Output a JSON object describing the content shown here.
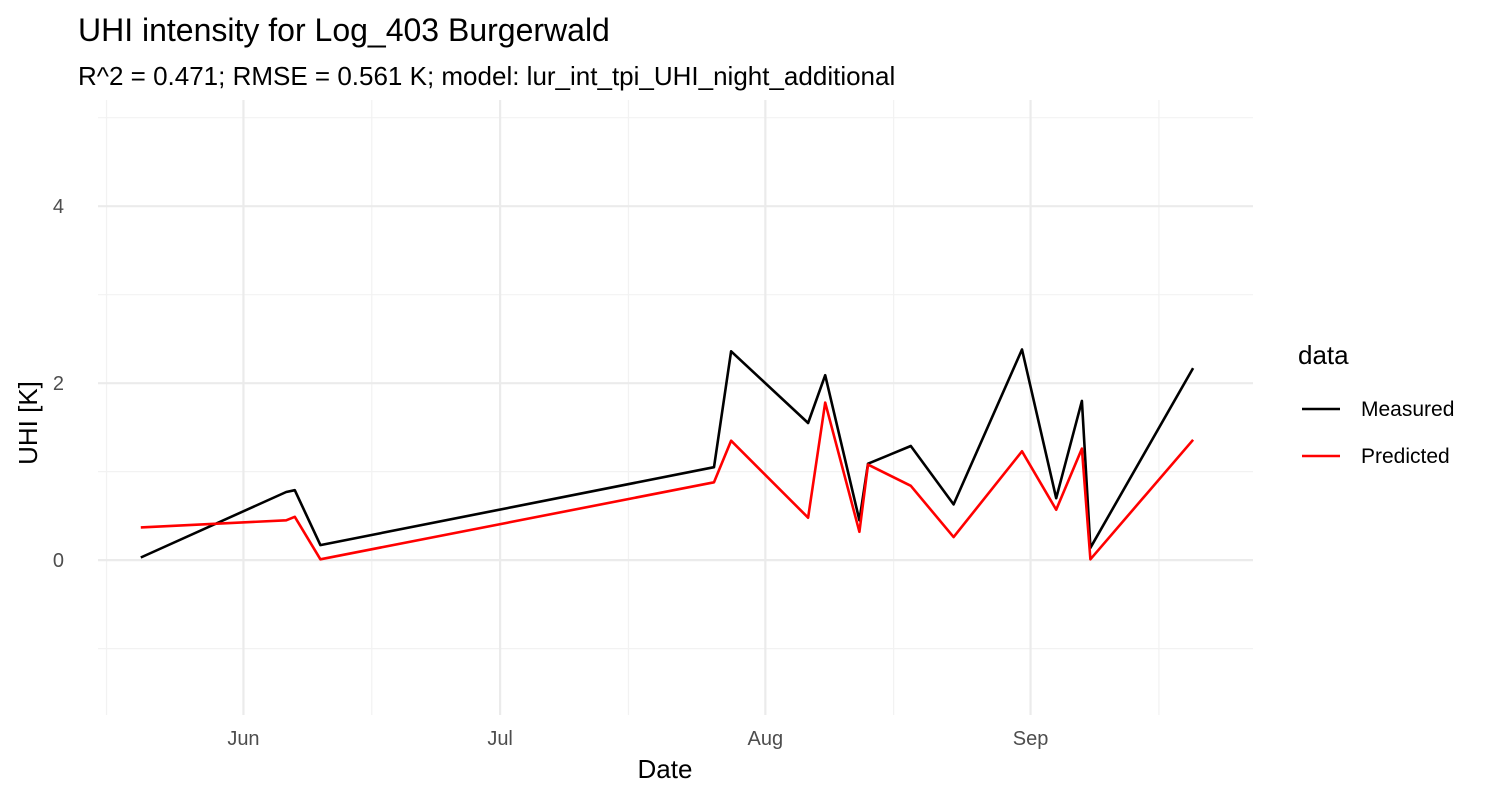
{
  "chart_data": {
    "type": "line",
    "title": "UHI intensity for Log_403 Burgerwald",
    "subtitle": "R^2 = 0.471; RMSE = 0.561 K; model: lur_int_tpi_UHI_night_additional",
    "xlabel": "Date",
    "ylabel": "UHI [K]",
    "xlim": [
      "2023-05-15",
      "2023-09-27"
    ],
    "ylim": [
      -1.75,
      5.2
    ],
    "x_ticks": [
      {
        "date": "2023-06-01",
        "label": "Jun"
      },
      {
        "date": "2023-07-01",
        "label": "Jul"
      },
      {
        "date": "2023-08-01",
        "label": "Aug"
      },
      {
        "date": "2023-09-01",
        "label": "Sep"
      }
    ],
    "x_minor_ticks": [
      "2023-05-16",
      "2023-06-16",
      "2023-07-16",
      "2023-08-16",
      "2023-09-16"
    ],
    "y_ticks": [
      {
        "value": 0,
        "label": "0"
      },
      {
        "value": 2,
        "label": "2"
      },
      {
        "value": 4,
        "label": "4"
      }
    ],
    "y_minor_ticks": [
      -1,
      1,
      3,
      5
    ],
    "grid": true,
    "legend": {
      "title": "data",
      "position": "right"
    },
    "x": [
      "2023-05-20",
      "2023-06-06",
      "2023-06-07",
      "2023-06-10",
      "2023-07-26",
      "2023-07-28",
      "2023-08-06",
      "2023-08-08",
      "2023-08-12",
      "2023-08-13",
      "2023-08-18",
      "2023-08-23",
      "2023-08-31",
      "2023-09-04",
      "2023-09-07",
      "2023-09-08",
      "2023-09-20"
    ],
    "series": [
      {
        "name": "Measured",
        "color": "#000000",
        "values": [
          0.03,
          0.77,
          0.79,
          0.17,
          1.05,
          2.36,
          1.55,
          2.09,
          0.45,
          1.09,
          1.29,
          0.63,
          2.38,
          0.7,
          1.8,
          0.14,
          2.17
        ]
      },
      {
        "name": "Predicted",
        "color": "#ff0000",
        "values": [
          0.37,
          0.45,
          0.49,
          0.01,
          0.88,
          1.35,
          0.48,
          1.78,
          0.32,
          1.08,
          0.84,
          0.26,
          1.23,
          0.57,
          1.26,
          0.01,
          1.36
        ]
      }
    ]
  }
}
